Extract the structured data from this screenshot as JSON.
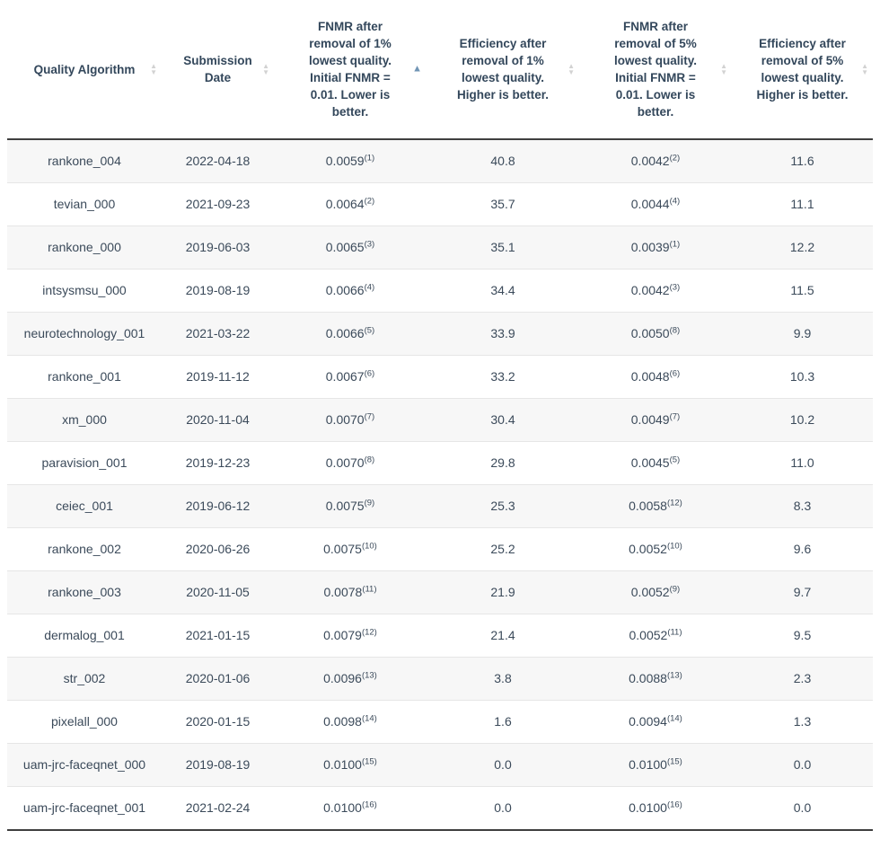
{
  "icons": {
    "up": "▲",
    "down": "▼"
  },
  "colors": {
    "header_text": "#33475b",
    "cell_text": "#3b4a5a",
    "stripe_row_bg": "#f7f7f7",
    "row_divider": "#e6e6e6",
    "table_frame_border": "#3f3f3f",
    "sort_icon_inactive": "#d2d2d2",
    "sort_icon_active": "#7195b5"
  },
  "table": {
    "columns": [
      {
        "label": "Quality Algorithm",
        "sort_state": "none"
      },
      {
        "label": "Submission\nDate",
        "sort_state": "none"
      },
      {
        "label": "FNMR after\nremoval of 1%\nlowest quality.\nInitial FNMR =\n0.01. Lower is\nbetter.",
        "sort_state": "ascending"
      },
      {
        "label": "Efficiency after\nremoval of 1%\nlowest quality.\nHigher is better.",
        "sort_state": "none"
      },
      {
        "label": "FNMR after\nremoval of 5%\nlowest quality.\nInitial FNMR =\n0.01. Lower is\nbetter.",
        "sort_state": "none"
      },
      {
        "label": "Efficiency after\nremoval of 5%\nlowest quality.\nHigher is better.",
        "sort_state": "none"
      }
    ],
    "rows": [
      {
        "algorithm": "rankone_004",
        "date": "2022-04-18",
        "fnmr_1pct": "0.0059",
        "fnmr_1pct_rank": "(1)",
        "eff_1pct": "40.8",
        "fnmr_5pct": "0.0042",
        "fnmr_5pct_rank": "(2)",
        "eff_5pct": "11.6"
      },
      {
        "algorithm": "tevian_000",
        "date": "2021-09-23",
        "fnmr_1pct": "0.0064",
        "fnmr_1pct_rank": "(2)",
        "eff_1pct": "35.7",
        "fnmr_5pct": "0.0044",
        "fnmr_5pct_rank": "(4)",
        "eff_5pct": "11.1"
      },
      {
        "algorithm": "rankone_000",
        "date": "2019-06-03",
        "fnmr_1pct": "0.0065",
        "fnmr_1pct_rank": "(3)",
        "eff_1pct": "35.1",
        "fnmr_5pct": "0.0039",
        "fnmr_5pct_rank": "(1)",
        "eff_5pct": "12.2"
      },
      {
        "algorithm": "intsysmsu_000",
        "date": "2019-08-19",
        "fnmr_1pct": "0.0066",
        "fnmr_1pct_rank": "(4)",
        "eff_1pct": "34.4",
        "fnmr_5pct": "0.0042",
        "fnmr_5pct_rank": "(3)",
        "eff_5pct": "11.5"
      },
      {
        "algorithm": "neurotechnology_001",
        "date": "2021-03-22",
        "fnmr_1pct": "0.0066",
        "fnmr_1pct_rank": "(5)",
        "eff_1pct": "33.9",
        "fnmr_5pct": "0.0050",
        "fnmr_5pct_rank": "(8)",
        "eff_5pct": "9.9"
      },
      {
        "algorithm": "rankone_001",
        "date": "2019-11-12",
        "fnmr_1pct": "0.0067",
        "fnmr_1pct_rank": "(6)",
        "eff_1pct": "33.2",
        "fnmr_5pct": "0.0048",
        "fnmr_5pct_rank": "(6)",
        "eff_5pct": "10.3"
      },
      {
        "algorithm": "xm_000",
        "date": "2020-11-04",
        "fnmr_1pct": "0.0070",
        "fnmr_1pct_rank": "(7)",
        "eff_1pct": "30.4",
        "fnmr_5pct": "0.0049",
        "fnmr_5pct_rank": "(7)",
        "eff_5pct": "10.2"
      },
      {
        "algorithm": "paravision_001",
        "date": "2019-12-23",
        "fnmr_1pct": "0.0070",
        "fnmr_1pct_rank": "(8)",
        "eff_1pct": "29.8",
        "fnmr_5pct": "0.0045",
        "fnmr_5pct_rank": "(5)",
        "eff_5pct": "11.0"
      },
      {
        "algorithm": "ceiec_001",
        "date": "2019-06-12",
        "fnmr_1pct": "0.0075",
        "fnmr_1pct_rank": "(9)",
        "eff_1pct": "25.3",
        "fnmr_5pct": "0.0058",
        "fnmr_5pct_rank": "(12)",
        "eff_5pct": "8.3"
      },
      {
        "algorithm": "rankone_002",
        "date": "2020-06-26",
        "fnmr_1pct": "0.0075",
        "fnmr_1pct_rank": "(10)",
        "eff_1pct": "25.2",
        "fnmr_5pct": "0.0052",
        "fnmr_5pct_rank": "(10)",
        "eff_5pct": "9.6"
      },
      {
        "algorithm": "rankone_003",
        "date": "2020-11-05",
        "fnmr_1pct": "0.0078",
        "fnmr_1pct_rank": "(11)",
        "eff_1pct": "21.9",
        "fnmr_5pct": "0.0052",
        "fnmr_5pct_rank": "(9)",
        "eff_5pct": "9.7"
      },
      {
        "algorithm": "dermalog_001",
        "date": "2021-01-15",
        "fnmr_1pct": "0.0079",
        "fnmr_1pct_rank": "(12)",
        "eff_1pct": "21.4",
        "fnmr_5pct": "0.0052",
        "fnmr_5pct_rank": "(11)",
        "eff_5pct": "9.5"
      },
      {
        "algorithm": "str_002",
        "date": "2020-01-06",
        "fnmr_1pct": "0.0096",
        "fnmr_1pct_rank": "(13)",
        "eff_1pct": "3.8",
        "fnmr_5pct": "0.0088",
        "fnmr_5pct_rank": "(13)",
        "eff_5pct": "2.3"
      },
      {
        "algorithm": "pixelall_000",
        "date": "2020-01-15",
        "fnmr_1pct": "0.0098",
        "fnmr_1pct_rank": "(14)",
        "eff_1pct": "1.6",
        "fnmr_5pct": "0.0094",
        "fnmr_5pct_rank": "(14)",
        "eff_5pct": "1.3"
      },
      {
        "algorithm": "uam-jrc-faceqnet_000",
        "date": "2019-08-19",
        "fnmr_1pct": "0.0100",
        "fnmr_1pct_rank": "(15)",
        "eff_1pct": "0.0",
        "fnmr_5pct": "0.0100",
        "fnmr_5pct_rank": "(15)",
        "eff_5pct": "0.0"
      },
      {
        "algorithm": "uam-jrc-faceqnet_001",
        "date": "2021-02-24",
        "fnmr_1pct": "0.0100",
        "fnmr_1pct_rank": "(16)",
        "eff_1pct": "0.0",
        "fnmr_5pct": "0.0100",
        "fnmr_5pct_rank": "(16)",
        "eff_5pct": "0.0"
      }
    ]
  }
}
